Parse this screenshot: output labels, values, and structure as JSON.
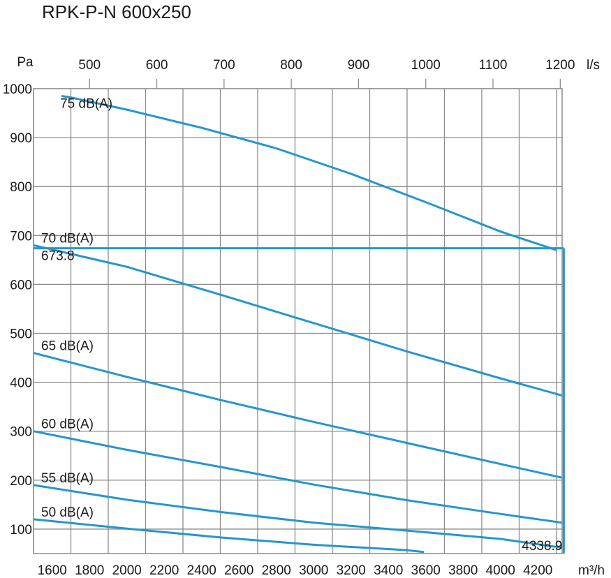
{
  "chart_data": {
    "type": "line",
    "title": "RPK-P-N 600x250",
    "y_unit": "Pa",
    "x_unit": "m³/h",
    "x2_unit": "l/s",
    "xlim": [
      1500,
      4330
    ],
    "ylim": [
      50,
      1000
    ],
    "x_ticks": [
      1600,
      1800,
      2000,
      2200,
      2400,
      2600,
      2800,
      3000,
      3200,
      3400,
      3600,
      3800,
      4000,
      4200
    ],
    "x_gridlines": [
      1500,
      1700,
      1900,
      2100,
      2300,
      2500,
      2700,
      2900,
      3100,
      3300,
      3500,
      3700,
      3900,
      4100,
      4300
    ],
    "y_ticks": [
      100,
      200,
      300,
      400,
      500,
      600,
      700,
      800,
      900,
      1000
    ],
    "x2_ticks": [
      500,
      600,
      700,
      800,
      900,
      1000,
      1100,
      1200
    ],
    "grid": true,
    "series": [
      {
        "name": "75 dB(A)",
        "x": [
          1650,
          1700,
          2000,
          2400,
          2800,
          3200,
          3600,
          4000,
          4300
        ],
        "y": [
          985,
          982,
          957,
          920,
          878,
          826,
          768,
          708,
          670
        ]
      },
      {
        "name": "70 dB(A)",
        "x": [
          1500,
          2000,
          2500,
          3000,
          3500,
          4000,
          4330
        ],
        "y": [
          680,
          636,
          579,
          521,
          463,
          408,
          373
        ]
      },
      {
        "name": "65 dB(A)",
        "x": [
          1500,
          2000,
          2500,
          3000,
          3500,
          4000,
          4330
        ],
        "y": [
          460,
          411,
          364,
          319,
          276,
          233,
          205
        ]
      },
      {
        "name": "60 dB(A)",
        "x": [
          1500,
          2000,
          2500,
          3000,
          3500,
          4000,
          4330
        ],
        "y": [
          300,
          262,
          227,
          191,
          159,
          131,
          113
        ]
      },
      {
        "name": "55 dB(A)",
        "x": [
          1500,
          2000,
          2500,
          3000,
          3500,
          4000,
          4330
        ],
        "y": [
          190,
          160,
          135,
          113,
          97,
          80,
          62
        ]
      },
      {
        "name": "50 dB(A)",
        "x": [
          1500,
          2000,
          2500,
          3000,
          3500,
          3590
        ],
        "y": [
          120,
          101,
          83,
          68,
          57,
          53
        ]
      }
    ],
    "operating_point": {
      "x": 4338.9,
      "y": 673.8,
      "x_label": "4338.9",
      "y_label": "673.8"
    }
  }
}
